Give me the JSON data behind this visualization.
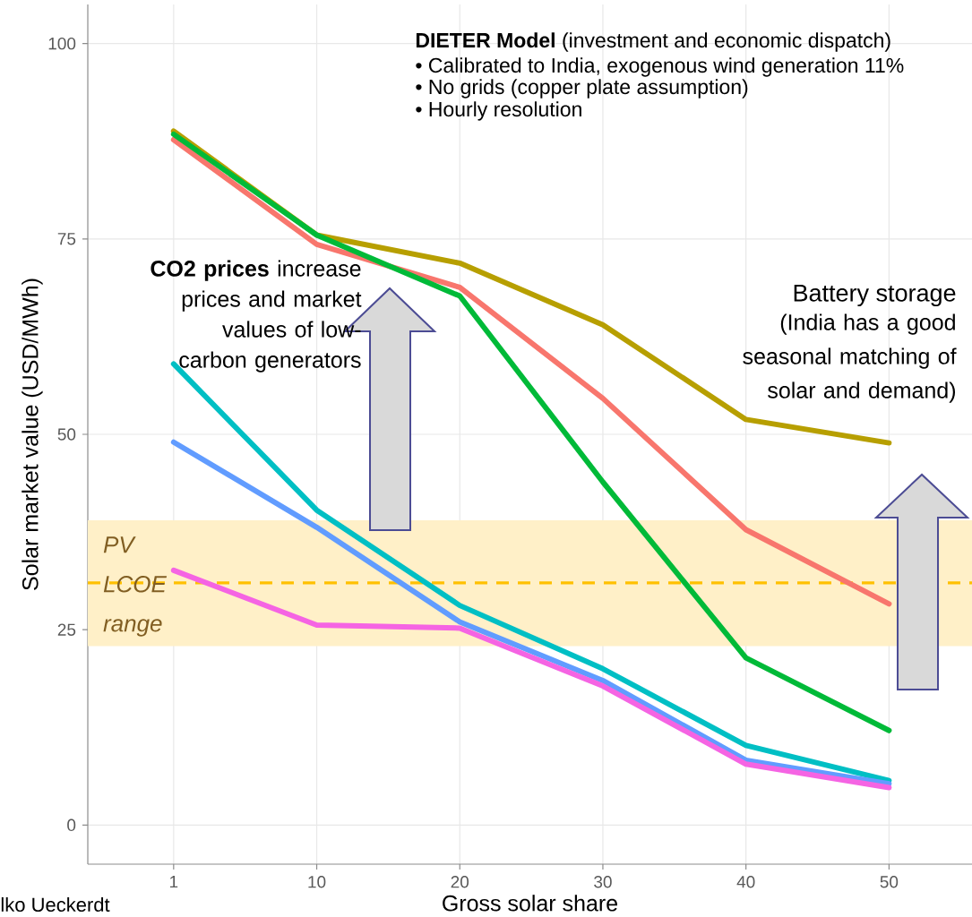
{
  "chart_data": {
    "type": "line",
    "xlabel": "Gross solar share",
    "ylabel": "Solar market value (USD/MWh)",
    "categories": [
      "1",
      "10",
      "20",
      "30",
      "40",
      "50"
    ],
    "ylim": [
      -5,
      105
    ],
    "yticks": [
      0,
      25,
      50,
      75,
      100
    ],
    "grid": true,
    "series": [
      {
        "color": "#b79f00",
        "values": [
          88.8,
          75.5,
          71.9,
          64.0,
          51.9,
          48.9
        ]
      },
      {
        "color": "#f8766d",
        "values": [
          87.7,
          74.3,
          68.8,
          54.6,
          37.8,
          28.3
        ]
      },
      {
        "color": "#00ba38",
        "values": [
          88.4,
          75.5,
          67.7,
          43.9,
          21.4,
          12.1
        ]
      },
      {
        "color": "#00bfc4",
        "values": [
          59.0,
          40.3,
          28.1,
          20.0,
          10.2,
          5.7
        ]
      },
      {
        "color": "#619cff",
        "values": [
          49.0,
          38.1,
          26.0,
          18.5,
          8.3,
          5.3
        ]
      },
      {
        "color": "#f564e3",
        "values": [
          32.6,
          25.6,
          25.2,
          17.8,
          7.8,
          4.8
        ]
      }
    ],
    "bands": [
      {
        "axis": "y",
        "from": 22.9,
        "to": 39,
        "label": "PV LCOE range",
        "color": "#fff0c8"
      }
    ],
    "ref_lines": [
      {
        "axis": "y",
        "value": 31,
        "color": "#ffc000",
        "line_style": "dashed"
      }
    ],
    "annotations": [
      "**DIETER Model** (investment and economic dispatch)",
      "• Calibrated to India, exogenous wind generation 11%",
      "• No grids (copper plate assumption)",
      "• Hourly resolution",
      "**CO2 prices** increase prices and market values of low-carbon generators",
      "Battery storage",
      "(India has a good seasonal matching of solar and demand)",
      "lko Ueckerdt"
    ]
  }
}
